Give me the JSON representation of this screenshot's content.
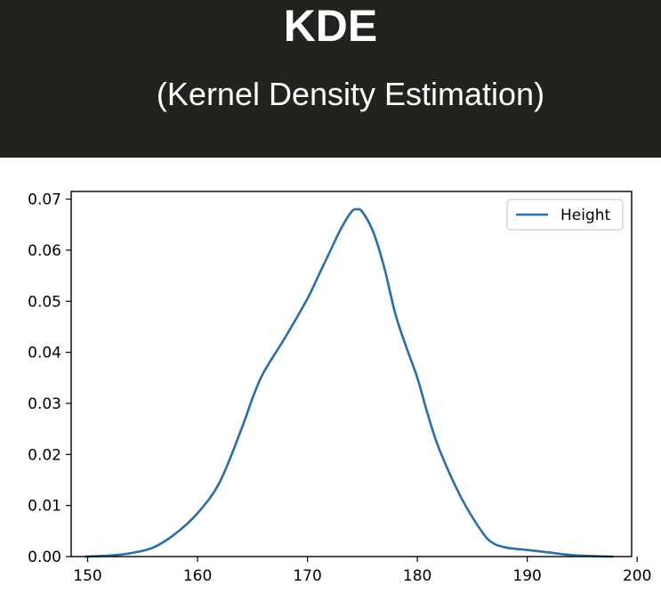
{
  "header": {
    "title": "KDE",
    "subtitle": "(Kernel Density Estimation)"
  },
  "chart_data": {
    "type": "line",
    "title": "",
    "xlabel": "",
    "ylabel": "",
    "xlim": [
      148.5,
      199.5
    ],
    "ylim": [
      0,
      0.0715
    ],
    "x_ticks": [
      150,
      160,
      170,
      180,
      190,
      200
    ],
    "y_ticks": [
      0.0,
      0.01,
      0.02,
      0.03,
      0.04,
      0.05,
      0.06,
      0.07
    ],
    "x_tick_labels": [
      "150",
      "160",
      "170",
      "180",
      "190",
      "200"
    ],
    "y_tick_labels": [
      "0.00",
      "0.01",
      "0.02",
      "0.03",
      "0.04",
      "0.05",
      "0.06",
      "0.07"
    ],
    "grid": false,
    "legend_position": "top-right",
    "series": [
      {
        "name": "Height",
        "color": "#2b6ea6",
        "x": [
          149.8,
          152,
          154,
          156,
          158,
          160,
          162,
          164,
          165,
          166,
          168,
          170,
          171,
          172,
          173,
          174,
          174.5,
          175,
          176,
          177,
          178,
          179,
          180,
          181,
          182,
          184,
          186,
          187,
          188,
          189,
          190,
          192,
          194,
          196,
          197.8
        ],
        "y": [
          0.0,
          0.0002,
          0.0007,
          0.0018,
          0.0045,
          0.0085,
          0.0145,
          0.025,
          0.031,
          0.036,
          0.043,
          0.0505,
          0.055,
          0.0595,
          0.064,
          0.0675,
          0.068,
          0.0675,
          0.0635,
          0.0565,
          0.0475,
          0.041,
          0.035,
          0.0275,
          0.021,
          0.0115,
          0.0045,
          0.0025,
          0.0018,
          0.0015,
          0.0013,
          0.0008,
          0.0003,
          0.0001,
          0.0
        ]
      }
    ]
  }
}
